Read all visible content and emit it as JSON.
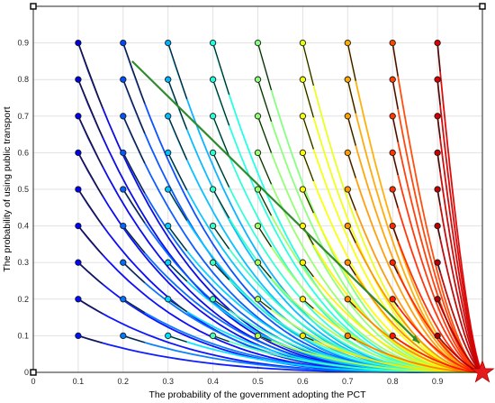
{
  "chart_data": {
    "type": "line",
    "title": "",
    "xlabel": "The probability of the government adopting the PCT",
    "ylabel": "The probability of using public transport",
    "xlim": [
      0,
      1
    ],
    "ylim": [
      0,
      1
    ],
    "grid": true,
    "x_ticks": [
      "0",
      "0.1",
      "0.2",
      "0.3",
      "0.4",
      "0.5",
      "0.6",
      "0.7",
      "0.8",
      "0.9"
    ],
    "y_ticks": [
      "0",
      "0.1",
      "0.2",
      "0.3",
      "0.4",
      "0.5",
      "0.6",
      "0.7",
      "0.8",
      "0.9"
    ],
    "equilibrium_point": {
      "x": 1,
      "y": 0,
      "marker": "red-star"
    },
    "initial_points_x": [
      0.1,
      0.2,
      0.3,
      0.4,
      0.5,
      0.6,
      0.7,
      0.8,
      0.9
    ],
    "initial_points_y": [
      0.1,
      0.2,
      0.3,
      0.4,
      0.5,
      0.6,
      0.7,
      0.8,
      0.9
    ],
    "colormap": "jet",
    "highlight_trajectory": {
      "x": [
        0.22,
        0.86
      ],
      "y": [
        0.85,
        0.08
      ],
      "color": "#2e8b2e"
    }
  }
}
